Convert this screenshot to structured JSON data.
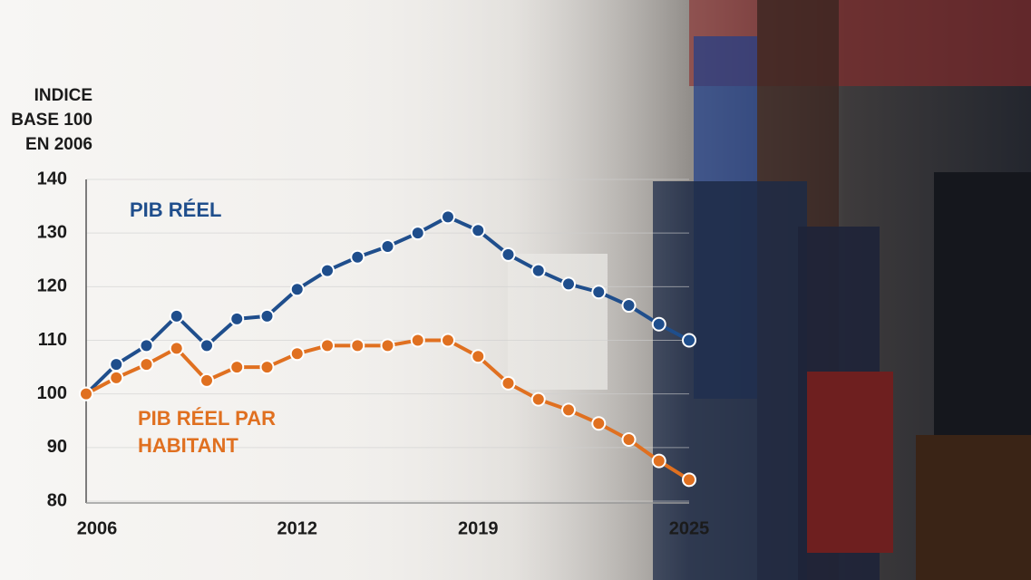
{
  "chart_data": {
    "type": "line",
    "ylabel": [
      "INDICE",
      "BASE 100",
      "EN 2006"
    ],
    "categories": [
      "2006",
      null,
      null,
      null,
      null,
      null,
      null,
      "2012",
      null,
      null,
      null,
      null,
      null,
      "2019",
      null,
      null,
      null,
      null,
      null,
      null,
      "2025"
    ],
    "series": [
      {
        "name": "PIB RÉEL",
        "color": "#1f4e8c",
        "values": [
          100,
          105.5,
          109,
          114.5,
          109,
          114,
          114.5,
          119.5,
          123,
          125.5,
          127.5,
          130,
          133,
          130.5,
          126,
          123,
          120.5,
          119,
          116.5,
          113,
          110
        ]
      },
      {
        "name": "PIB RÉEL PAR HABITANT",
        "color": "#e07020",
        "values": [
          100,
          103,
          105.5,
          108.5,
          102.5,
          105,
          105,
          107.5,
          109,
          109,
          109,
          110,
          110,
          107,
          102,
          99,
          97,
          94.5,
          91.5,
          87.5,
          84
        ]
      }
    ],
    "ylim": [
      80,
      140
    ],
    "yticks": [
      80,
      90,
      100,
      110,
      120,
      130,
      140
    ],
    "grid": true
  }
}
